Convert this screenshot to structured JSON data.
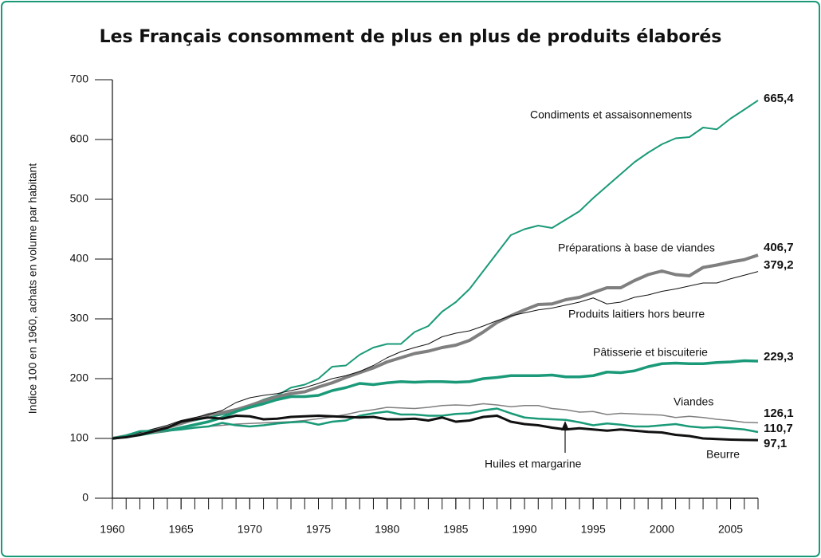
{
  "chart_data": {
    "type": "line",
    "title": "Les Français consomment de plus en plus de produits élaborés",
    "y_label": "Indice 100 en 1960, achats en volume par habitant",
    "x": [
      1960,
      1961,
      1962,
      1963,
      1964,
      1965,
      1966,
      1967,
      1968,
      1969,
      1970,
      1971,
      1972,
      1973,
      1974,
      1975,
      1976,
      1977,
      1978,
      1979,
      1980,
      1981,
      1982,
      1983,
      1984,
      1985,
      1986,
      1987,
      1988,
      1989,
      1990,
      1991,
      1992,
      1993,
      1994,
      1995,
      1996,
      1997,
      1998,
      1999,
      2000,
      2001,
      2002,
      2003,
      2004,
      2005,
      2006,
      2007
    ],
    "xlim": [
      1960,
      2007
    ],
    "xticks": [
      1960,
      1965,
      1970,
      1975,
      1980,
      1985,
      1990,
      1995,
      2000,
      2005
    ],
    "ylim": [
      0,
      700
    ],
    "yticks": [
      0,
      100,
      200,
      300,
      400,
      500,
      600,
      700
    ],
    "series": [
      {
        "name": "Condiments et assaisonnements",
        "color": "#1a9a78",
        "linewidth": 2,
        "end_label": "665,4",
        "values": [
          100,
          105,
          112,
          113,
          117,
          125,
          130,
          135,
          140,
          145,
          155,
          165,
          172,
          185,
          190,
          200,
          220,
          222,
          240,
          252,
          258,
          258,
          278,
          288,
          312,
          328,
          350,
          380,
          410,
          440,
          450,
          456,
          452,
          466,
          480,
          502,
          522,
          542,
          562,
          578,
          592,
          602,
          604,
          620,
          617,
          635,
          650,
          665.4
        ]
      },
      {
        "name": "Préparations à base de viandes",
        "color": "#7f7f7f",
        "linewidth": 4,
        "end_label": "406,7",
        "values": [
          100,
          104,
          108,
          113,
          118,
          125,
          132,
          140,
          143,
          148,
          155,
          163,
          170,
          175,
          178,
          186,
          193,
          202,
          210,
          218,
          228,
          235,
          242,
          246,
          252,
          256,
          264,
          278,
          294,
          305,
          315,
          324,
          325,
          332,
          336,
          344,
          352,
          352,
          364,
          374,
          380,
          374,
          372,
          386,
          390,
          395,
          399,
          406.7
        ]
      },
      {
        "name": "Produits laitiers hors beurre",
        "color": "#111111",
        "linewidth": 1,
        "end_label": "379,2",
        "values": [
          100,
          105,
          110,
          116,
          122,
          130,
          135,
          140,
          147,
          160,
          168,
          172,
          175,
          180,
          185,
          192,
          200,
          205,
          212,
          222,
          235,
          245,
          252,
          258,
          270,
          276,
          280,
          288,
          297,
          305,
          310,
          315,
          318,
          323,
          328,
          335,
          325,
          328,
          336,
          340,
          346,
          350,
          355,
          360,
          360,
          367,
          373,
          379.2
        ]
      },
      {
        "name": "Pâtisserie et biscuiterie",
        "color": "#1a9a78",
        "linewidth": 3.5,
        "end_label": "229,3",
        "values": [
          100,
          103,
          106,
          110,
          113,
          118,
          123,
          128,
          135,
          145,
          152,
          158,
          165,
          170,
          170,
          172,
          180,
          185,
          192,
          190,
          193,
          195,
          194,
          195,
          195,
          194,
          195,
          200,
          202,
          205,
          205,
          205,
          206,
          203,
          203,
          205,
          211,
          210,
          213,
          220,
          225,
          226,
          225,
          225,
          227,
          228,
          230,
          229.3
        ]
      },
      {
        "name": "Viandes",
        "color": "#7f7f7f",
        "linewidth": 1.5,
        "end_label": "126,1",
        "values": [
          100,
          104,
          107,
          110,
          112,
          115,
          118,
          120,
          122,
          124,
          125,
          126,
          127,
          128,
          130,
          133,
          136,
          140,
          145,
          148,
          152,
          151,
          150,
          152,
          155,
          156,
          155,
          158,
          156,
          153,
          155,
          155,
          150,
          148,
          144,
          145,
          140,
          142,
          141,
          140,
          139,
          135,
          137,
          135,
          132,
          130,
          127,
          126.1
        ]
      },
      {
        "name": "Huiles et margarine",
        "color": "#1a9a78",
        "linewidth": 2.5,
        "end_label": "110,7",
        "values": [
          100,
          105,
          112,
          113,
          113,
          115,
          118,
          120,
          126,
          122,
          120,
          122,
          125,
          127,
          128,
          123,
          128,
          130,
          138,
          142,
          145,
          140,
          140,
          138,
          138,
          141,
          142,
          147,
          150,
          142,
          135,
          133,
          132,
          131,
          127,
          122,
          125,
          123,
          120,
          120,
          122,
          124,
          120,
          118,
          119,
          117,
          115,
          110.7
        ]
      },
      {
        "name": "Beurre",
        "color": "#111111",
        "linewidth": 3,
        "end_label": "97,1",
        "values": [
          100,
          102,
          106,
          112,
          118,
          128,
          132,
          135,
          133,
          138,
          137,
          132,
          133,
          136,
          137,
          138,
          137,
          136,
          135,
          136,
          132,
          132,
          133,
          130,
          135,
          128,
          130,
          136,
          138,
          128,
          124,
          122,
          118,
          115,
          117,
          115,
          113,
          115,
          113,
          111,
          110,
          106,
          104,
          100,
          99,
          98,
          97.5,
          97.1
        ]
      }
    ]
  }
}
